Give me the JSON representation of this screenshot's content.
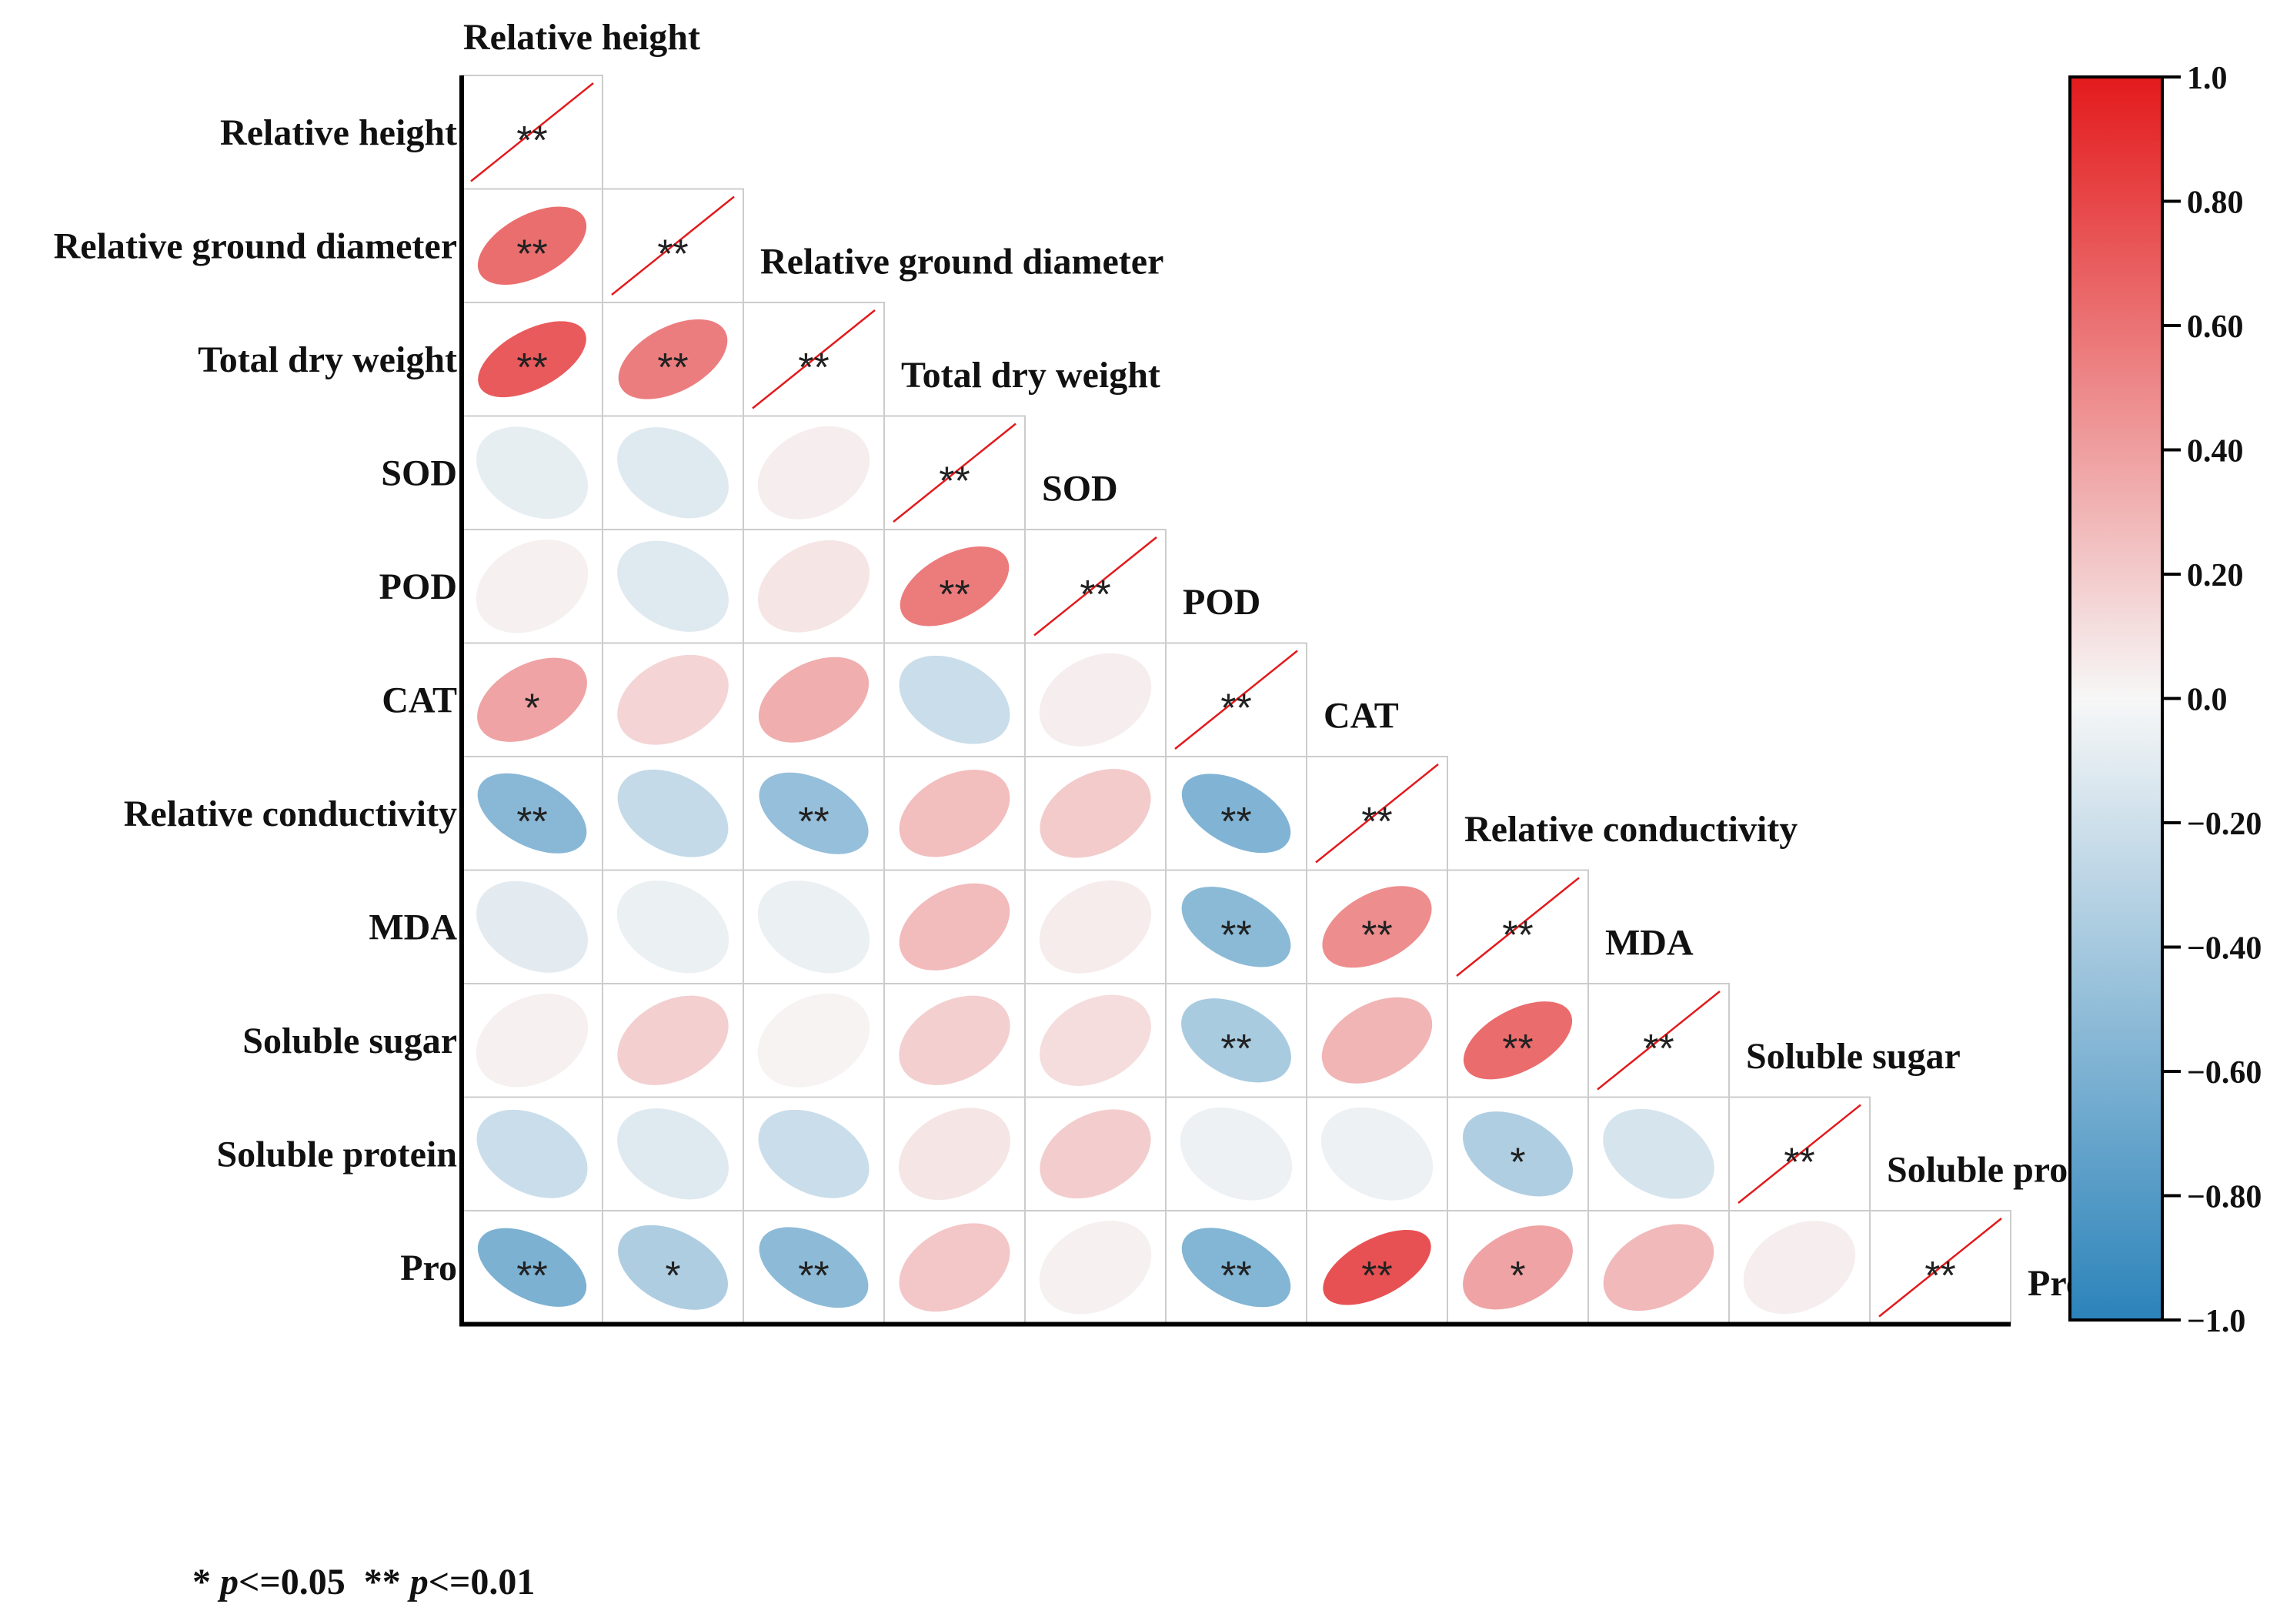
{
  "chart_data": {
    "type": "heatmap",
    "subtype": "correlation-ellipse-lower-triangle",
    "variables": [
      "Relative height",
      "Relative ground diameter",
      "Total dry weight",
      "SOD",
      "POD",
      "CAT",
      "Relative conductivity",
      "MDA",
      "Soluble sugar",
      "Soluble protein",
      "Pro"
    ],
    "correlations": [
      [
        1.0,
        0.62,
        0.71,
        -0.08,
        0.03,
        0.38,
        -0.54,
        -0.1,
        0.03,
        -0.22,
        -0.6
      ],
      [
        0.62,
        1.0,
        0.55,
        -0.12,
        -0.12,
        0.16,
        -0.25,
        -0.06,
        0.18,
        -0.12,
        -0.36
      ],
      [
        0.71,
        0.55,
        1.0,
        0.04,
        0.08,
        0.33,
        -0.48,
        -0.06,
        0.02,
        -0.22,
        -0.52
      ],
      [
        -0.08,
        -0.12,
        0.04,
        1.0,
        0.56,
        -0.22,
        0.26,
        0.27,
        0.18,
        0.08,
        0.22
      ],
      [
        0.03,
        -0.12,
        0.08,
        0.56,
        1.0,
        0.04,
        0.2,
        0.05,
        0.12,
        0.19,
        0.03
      ],
      [
        0.38,
        0.16,
        0.33,
        -0.22,
        0.04,
        1.0,
        -0.58,
        -0.53,
        -0.38,
        -0.05,
        -0.57
      ],
      [
        -0.54,
        -0.25,
        -0.48,
        0.26,
        0.2,
        -0.58,
        1.0,
        0.48,
        0.3,
        -0.05,
        0.75
      ],
      [
        -0.1,
        -0.06,
        -0.06,
        0.27,
        0.05,
        -0.53,
        0.48,
        1.0,
        0.63,
        -0.35,
        0.38
      ],
      [
        0.03,
        0.18,
        0.02,
        0.18,
        0.12,
        -0.38,
        0.3,
        0.63,
        1.0,
        -0.16,
        0.28
      ],
      [
        -0.22,
        -0.12,
        -0.22,
        0.08,
        0.19,
        -0.05,
        -0.05,
        -0.35,
        -0.16,
        1.0,
        0.04
      ],
      [
        -0.6,
        -0.36,
        -0.52,
        0.22,
        0.03,
        -0.57,
        0.75,
        0.38,
        0.28,
        0.04,
        1.0
      ]
    ],
    "significance": [
      [
        "**",
        "",
        "",
        "",
        "",
        "",
        "",
        "",
        "",
        "",
        ""
      ],
      [
        "**",
        "**",
        "",
        "",
        "",
        "",
        "",
        "",
        "",
        "",
        ""
      ],
      [
        "**",
        "**",
        "**",
        "",
        "",
        "",
        "",
        "",
        "",
        "",
        ""
      ],
      [
        "",
        "",
        "",
        "**",
        "",
        "",
        "",
        "",
        "",
        "",
        ""
      ],
      [
        "",
        "",
        "",
        "**",
        "**",
        "",
        "",
        "",
        "",
        "",
        ""
      ],
      [
        "*",
        "",
        "",
        "",
        "",
        "**",
        "",
        "",
        "",
        "",
        ""
      ],
      [
        "**",
        "",
        "**",
        "",
        "",
        "**",
        "**",
        "",
        "",
        "",
        ""
      ],
      [
        "",
        "",
        "",
        "",
        "",
        "**",
        "**",
        "**",
        "",
        "",
        ""
      ],
      [
        "",
        "",
        "",
        "",
        "",
        "**",
        "",
        "**",
        "**",
        "",
        ""
      ],
      [
        "",
        "",
        "",
        "",
        "",
        "",
        "",
        "*",
        "",
        "**",
        ""
      ],
      [
        "**",
        "*",
        "**",
        "",
        "",
        "**",
        "**",
        "*",
        "",
        "",
        "**"
      ]
    ],
    "colorbar": {
      "min": -1.0,
      "max": 1.0,
      "ticks": [
        "1.0",
        "0.80",
        "0.60",
        "0.40",
        "0.20",
        "0.0",
        "−0.20",
        "−0.40",
        "−0.60",
        "−0.80",
        "−1.0"
      ],
      "colors": {
        "negative": "#2b83ba",
        "neutral": "#f7f7f7",
        "positive": "#e31a1c"
      }
    },
    "diagonal_line_color": "#e31a1c",
    "grid_color": "#cccccc",
    "axis_color": "#000000"
  },
  "footnote": {
    "star1": "*",
    "p1": "p",
    "thr1": "<=0.05",
    "star2": "**",
    "p2": "p",
    "thr2": "<=0.01"
  }
}
